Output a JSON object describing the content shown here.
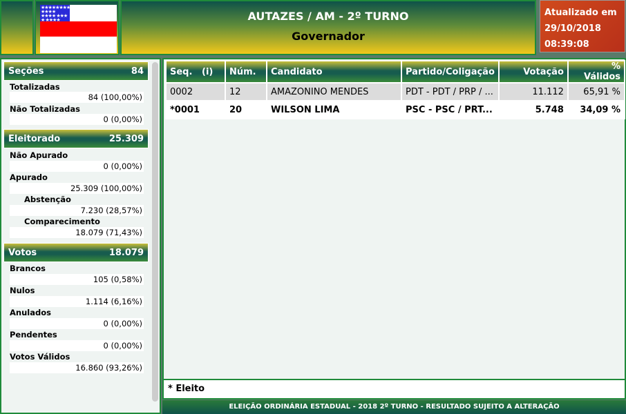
{
  "header": {
    "title": "AUTAZES / AM - 2º TURNO",
    "subtitle": "Governador",
    "updated_label": "Atualizado em",
    "updated_date": "29/10/2018",
    "updated_time": "08:39:08",
    "flag": "amazonas-flag"
  },
  "left": {
    "secoes": {
      "label": "Seções",
      "value": "84",
      "items": [
        {
          "label": "Totalizadas",
          "value": "84 (100,00%)"
        },
        {
          "label": "Não Totalizadas",
          "value": "0 (0,00%)"
        }
      ]
    },
    "eleitorado": {
      "label": "Eleitorado",
      "value": "25.309",
      "items": [
        {
          "label": "Não Apurado",
          "value": "0 (0,00%)"
        },
        {
          "label": "Apurado",
          "value": "25.309 (100,00%)"
        },
        {
          "label": "Abstenção",
          "value": "7.230 (28,57%)"
        },
        {
          "label": "Comparecimento",
          "value": "18.079 (71,43%)"
        }
      ]
    },
    "votos": {
      "label": "Votos",
      "value": "18.079",
      "items": [
        {
          "label": "Brancos",
          "value": "105 (0,58%)"
        },
        {
          "label": "Nulos",
          "value": "1.114 (6,16%)"
        },
        {
          "label": "Anulados",
          "value": "0 (0,00%)"
        },
        {
          "label": "Pendentes",
          "value": "0 (0,00%)"
        },
        {
          "label": "Votos Válidos",
          "value": "16.860 (93,26%)"
        }
      ]
    }
  },
  "table": {
    "headers": [
      "Seq.   (i)",
      "Núm.",
      "Candidato",
      "Partido/Coligação",
      "Votação",
      "% Válidos"
    ],
    "rows": [
      [
        "0002",
        "12",
        "AMAZONINO MENDES",
        "PDT - PDT / PRP / ...",
        "11.112",
        "65,91 %"
      ],
      [
        "*0001",
        "20",
        "WILSON LIMA",
        "PSC - PSC / PRT...",
        "5.748",
        "34,09 %"
      ]
    ]
  },
  "legend": "* Eleito",
  "footer": "ELEIÇÃO ORDINÁRIA ESTADUAL - 2018 2º TURNO - RESULTADO SUJEITO A ALTERAÇÃO"
}
